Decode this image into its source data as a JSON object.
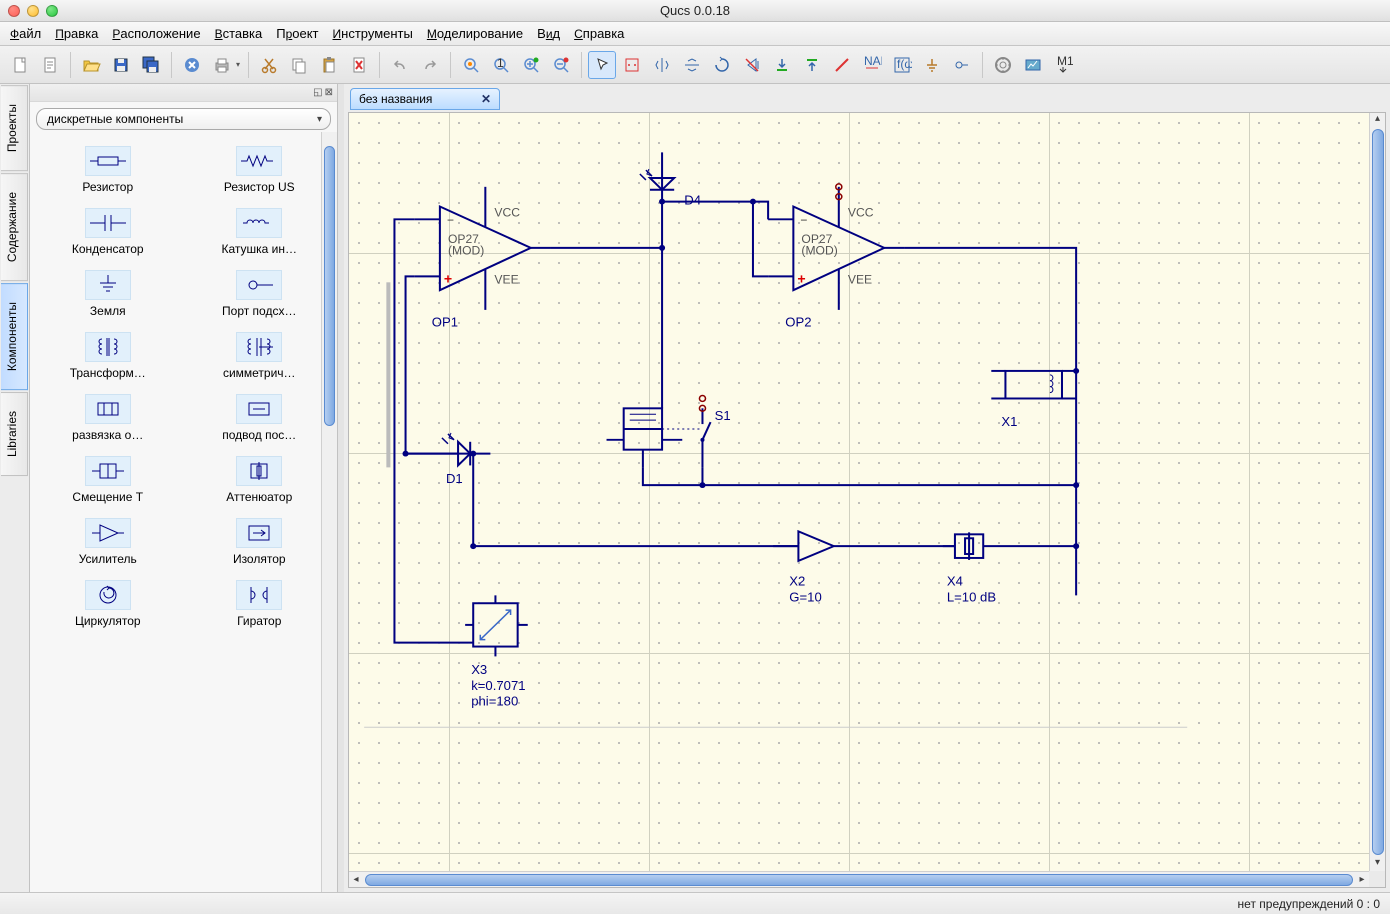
{
  "window": {
    "title": "Qucs 0.0.18"
  },
  "menu": {
    "items": [
      {
        "html": "<u>Ф</u>айл"
      },
      {
        "html": "<u>П</u>равка"
      },
      {
        "html": "<u>Р</u>асположение"
      },
      {
        "html": "<u>В</u>ставка"
      },
      {
        "html": "П<u>р</u>оект"
      },
      {
        "html": "<u>И</u>нструменты"
      },
      {
        "html": "<u>М</u>оделирование"
      },
      {
        "html": "В<u>и</u>д"
      },
      {
        "html": "<u>С</u>правка"
      }
    ]
  },
  "side_tabs": {
    "items": [
      {
        "label": "Проекты",
        "active": false
      },
      {
        "label": "Содержание",
        "active": false
      },
      {
        "label": "Компоненты",
        "active": true
      },
      {
        "label": "Libraries",
        "active": false
      }
    ]
  },
  "component_panel": {
    "dropdown_value": "дискретные компоненты",
    "items": [
      {
        "k": "resistor",
        "label": "Резистор"
      },
      {
        "k": "resistor_us",
        "label": "Резистор US"
      },
      {
        "k": "capacitor",
        "label": "Конденсатор"
      },
      {
        "k": "inductor",
        "label": "Катушка ин…"
      },
      {
        "k": "ground",
        "label": "Земля"
      },
      {
        "k": "subport",
        "label": "Порт подсх…"
      },
      {
        "k": "transformer",
        "label": "Трансформ…"
      },
      {
        "k": "symtrans",
        "label": "симметрич…"
      },
      {
        "k": "decoup",
        "label": "развязка о…"
      },
      {
        "k": "podvod",
        "label": "подвод пос…"
      },
      {
        "k": "biast",
        "label": "Смещение T"
      },
      {
        "k": "atten",
        "label": "Аттенюатор"
      },
      {
        "k": "amp",
        "label": "Усилитель"
      },
      {
        "k": "isolator",
        "label": "Изолятор"
      },
      {
        "k": "circulator",
        "label": "Циркулятор"
      },
      {
        "k": "gyrator",
        "label": "Гиратор"
      }
    ]
  },
  "document": {
    "tab_label": "без названия",
    "schematic": {
      "wire_color": "#000080",
      "bg": "#fdfbe9",
      "opamp1": {
        "ref": "OP1",
        "type": "OP27",
        "sub": "(MOD)",
        "vcc": "VCC",
        "vee": "VEE"
      },
      "opamp2": {
        "ref": "OP2",
        "type": "OP27",
        "sub": "(MOD)",
        "vcc": "VCC",
        "vee": "VEE"
      },
      "d1": "D1",
      "d4": "D4",
      "s1": "S1",
      "x1": "X1",
      "x2": {
        "ref": "X2",
        "param": "G=10"
      },
      "x3": {
        "ref": "X3",
        "p1": "k=0.7071",
        "p2": "phi=180"
      },
      "x4": {
        "ref": "X4",
        "param": "L=10 dB"
      }
    }
  },
  "status": {
    "text": "нет предупреждений  0 : 0"
  }
}
